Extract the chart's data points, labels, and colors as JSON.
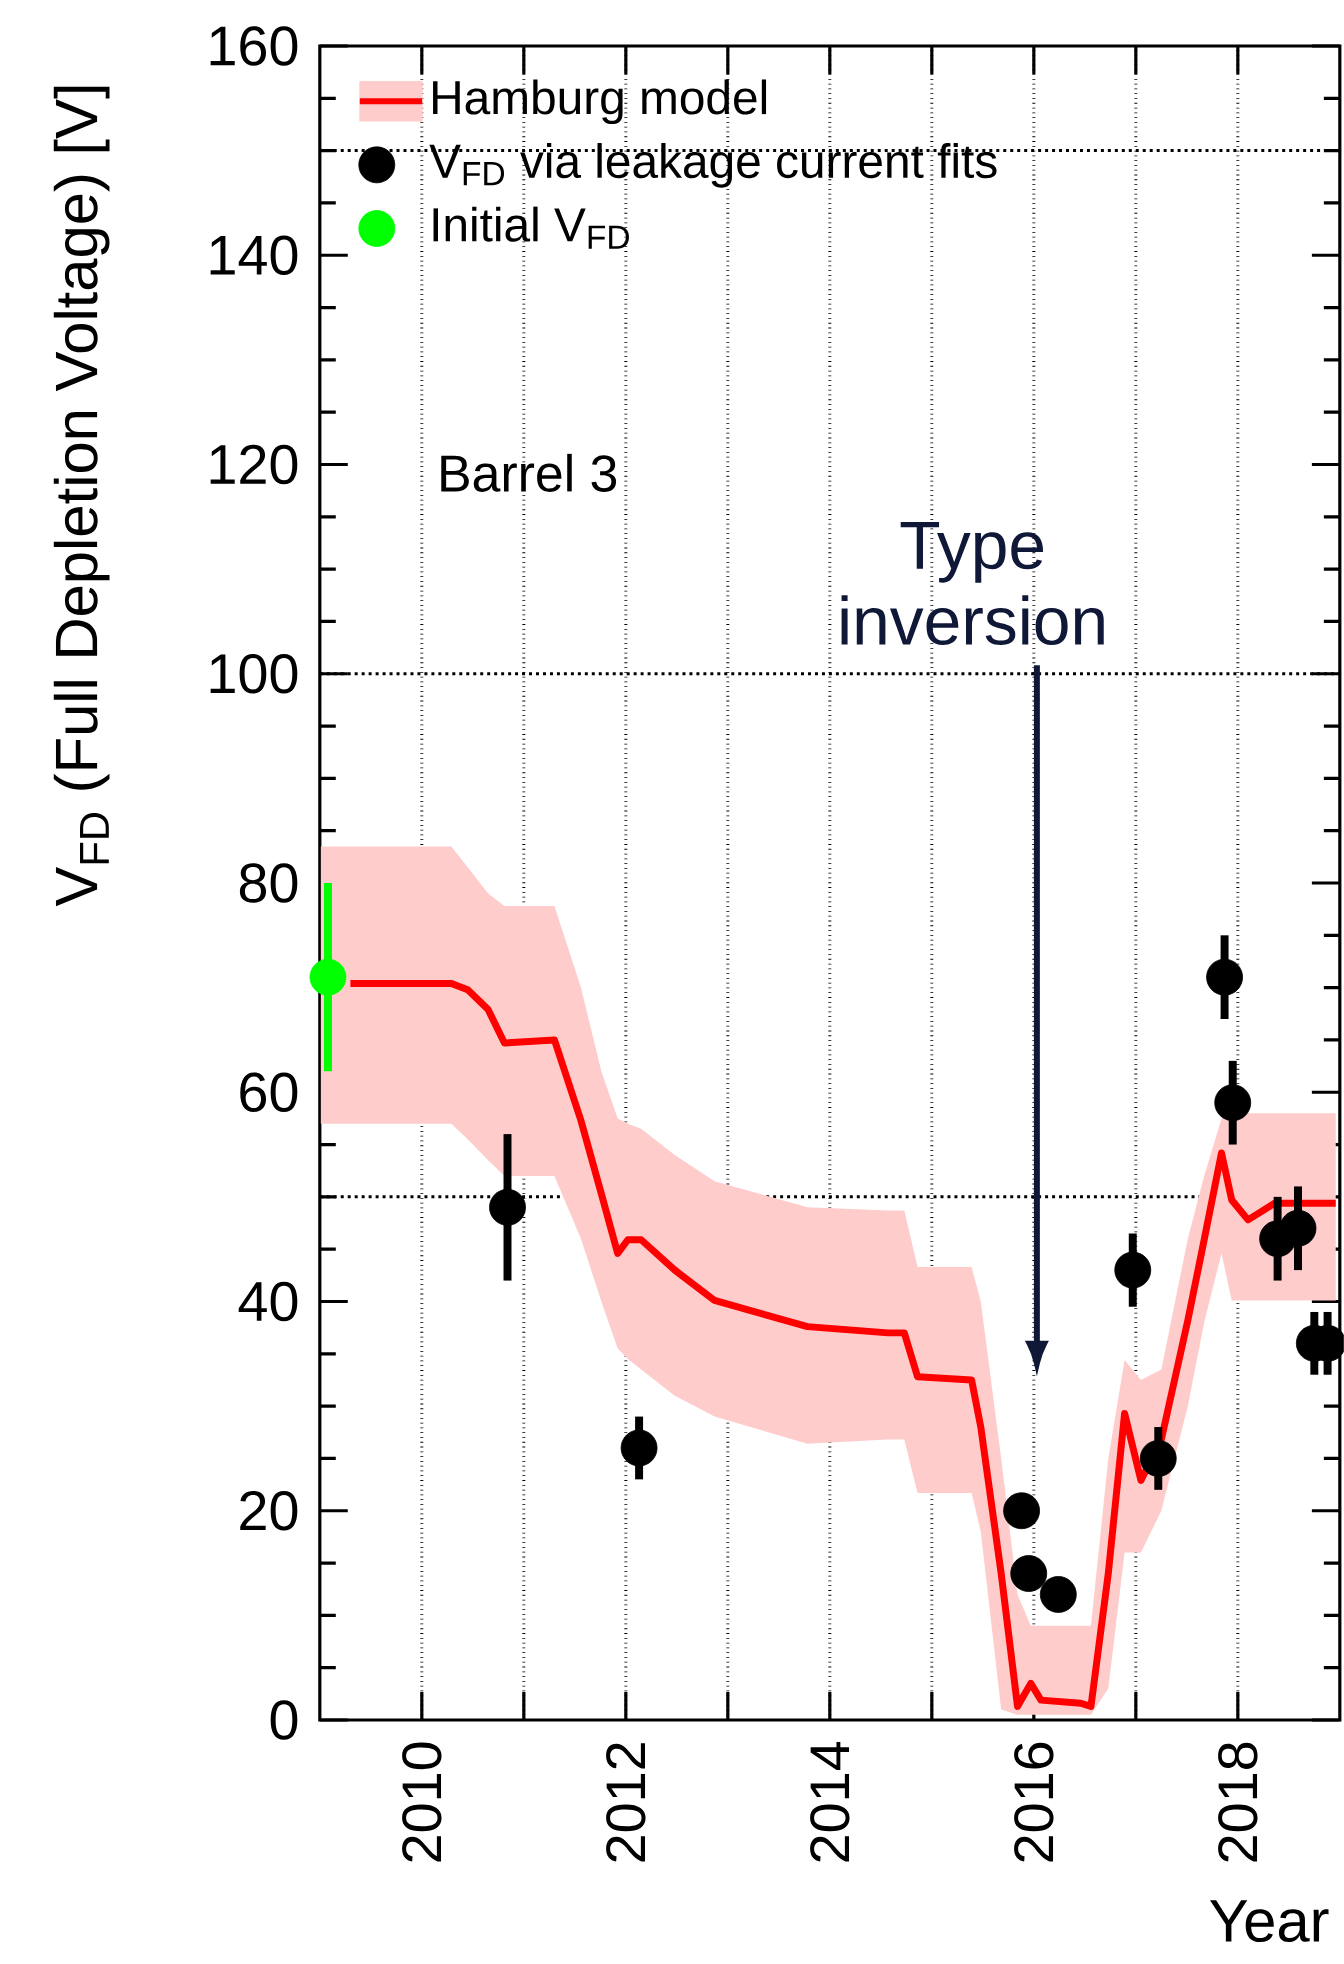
{
  "chart_data": {
    "type": "scatter",
    "xlabel": "Year",
    "ylabel": "V$_{FD}$ (Full Depletion Voltage) [V]",
    "xlim": [
      2009,
      2019
    ],
    "ylim": [
      0,
      160
    ],
    "xticks": [
      {
        "value": 2010,
        "label": "2010"
      },
      {
        "value": 2011,
        "label": null
      },
      {
        "value": 2012,
        "label": "2012"
      },
      {
        "value": 2013,
        "label": null
      },
      {
        "value": 2014,
        "label": "2014"
      },
      {
        "value": 2015,
        "label": null
      },
      {
        "value": 2016,
        "label": "2016"
      },
      {
        "value": 2017,
        "label": null
      },
      {
        "value": 2018,
        "label": "2018"
      }
    ],
    "yticks": [
      0,
      20,
      40,
      60,
      80,
      100,
      120,
      140,
      160
    ],
    "grid": "x",
    "legend": "top left",
    "ref_lines": [
      {
        "axis": "y",
        "value": 50,
        "line_style": "dotted"
      },
      {
        "axis": "y",
        "value": 100,
        "line_style": "dotted"
      },
      {
        "axis": "y",
        "value": 150,
        "line_style": "dotted"
      }
    ],
    "annotations": [
      "Barrel 3",
      "Type inversion"
    ],
    "series": [
      {
        "name": "Hamburg model",
        "type": "line",
        "marker": "none",
        "color": "#ff0000",
        "x": [
          2009.01,
          2009.3,
          2010.29,
          2010.45,
          2010.65,
          2010.81,
          2011.3,
          2011.56,
          2011.76,
          2011.92,
          2012.02,
          2012.15,
          2012.48,
          2012.87,
          2013.78,
          2014.57,
          2014.73,
          2014.86,
          2015.39,
          2015.48,
          2015.68,
          2015.84,
          2015.97,
          2016.07,
          2016.46,
          2016.56,
          2016.73,
          2016.89,
          2017.05,
          2017.25,
          2017.51,
          2017.67,
          2017.84,
          2017.94,
          2018.1,
          2018.36,
          2018.96
        ],
        "values": [
          null,
          70.4,
          70.4,
          69.8,
          67.9,
          64.7,
          65.0,
          57.3,
          50.3,
          44.6,
          45.9,
          45.9,
          43.0,
          40.1,
          37.6,
          37.0,
          37.0,
          32.8,
          32.5,
          28.0,
          14.0,
          1.3,
          3.5,
          1.9,
          1.6,
          1.3,
          14.0,
          29.3,
          22.9,
          26.8,
          38.2,
          45.9,
          54.2,
          49.7,
          47.8,
          49.4,
          49.4
        ],
        "lower": [
          57.0,
          57.0,
          57.0,
          55.5,
          53.5,
          52.0,
          52.0,
          46.0,
          40.0,
          35.5,
          34.5,
          33.5,
          31.0,
          29.0,
          26.4,
          26.8,
          26.8,
          21.7,
          21.7,
          18.0,
          1.0,
          0.5,
          0.5,
          0.5,
          0.5,
          0.5,
          3.0,
          16.0,
          16.0,
          20.0,
          30.0,
          38.0,
          44.6,
          40.1,
          40.1,
          40.1,
          40.1
        ],
        "upper": [
          83.5,
          83.5,
          83.5,
          81.5,
          79.0,
          77.8,
          77.8,
          70.0,
          62.0,
          57.5,
          57.0,
          56.5,
          54.0,
          51.5,
          49.0,
          48.7,
          48.7,
          43.3,
          43.3,
          40.0,
          25.0,
          12.0,
          9.0,
          9.0,
          9.0,
          9.0,
          25.0,
          34.4,
          32.5,
          33.5,
          46.0,
          52.0,
          57.5,
          58.0,
          58.0,
          58.0,
          58.0
        ]
      },
      {
        "name": "V$_{FD}$ via leakage current fits",
        "marker": "circle",
        "color": "#000000",
        "x": [
          2010.84,
          2012.13,
          2015.88,
          2015.95,
          2016.24,
          2016.97,
          2017.22,
          2017.87,
          2017.95,
          2018.39,
          2018.59,
          2018.75,
          2018.88
        ],
        "values": [
          49,
          26,
          20,
          14,
          12,
          43,
          25,
          71,
          59,
          46,
          47,
          36,
          36
        ],
        "errors": [
          7,
          3,
          null,
          null,
          null,
          3.5,
          3,
          4,
          4,
          4,
          4,
          3,
          3
        ]
      },
      {
        "name": "Initial V$_{FD}$",
        "marker": "circle",
        "color": "#00ff00",
        "x": [
          2009.08
        ],
        "values": [
          71
        ],
        "errors": [
          9
        ]
      }
    ]
  }
}
